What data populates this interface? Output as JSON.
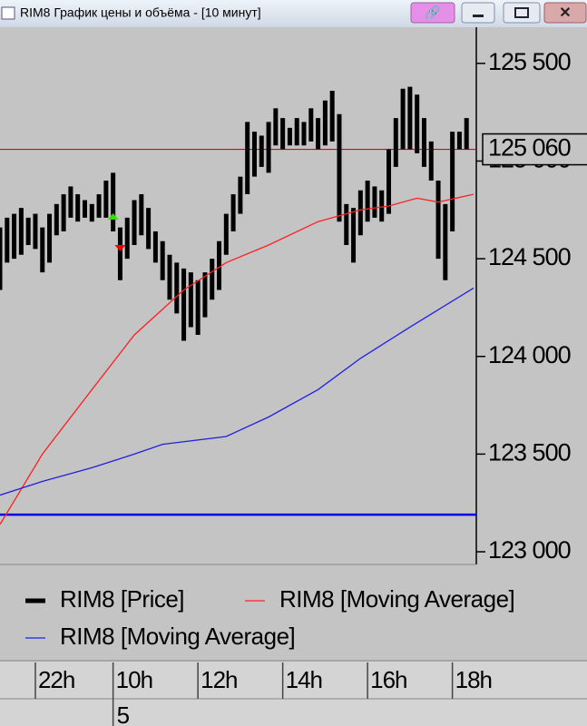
{
  "window": {
    "title": "RIM8 График цены и объёма - [10 минут]"
  },
  "chart_data": {
    "type": "rangebar",
    "xlim": [
      0,
      67
    ],
    "xticks": [
      {
        "value": 5,
        "label": "22h"
      },
      {
        "value": 16,
        "label": "10h"
      },
      {
        "value": 28,
        "label": "12h"
      },
      {
        "value": 40,
        "label": "14h"
      },
      {
        "value": 52,
        "label": "16h"
      },
      {
        "value": 64,
        "label": "18h"
      }
    ],
    "date_ticks": [
      {
        "value": 16,
        "label": "5"
      }
    ],
    "ylim": [
      122935,
      125685
    ],
    "yticks": [
      {
        "value": 123000,
        "label": "123 000"
      },
      {
        "value": 123500,
        "label": "123 500"
      },
      {
        "value": 124000,
        "label": "124 000"
      },
      {
        "value": 124500,
        "label": "124 500"
      },
      {
        "value": 125000,
        "label": "125 000"
      },
      {
        "value": 125500,
        "label": "125 500"
      }
    ],
    "series": [
      {
        "name": "RIM8 [Price]",
        "color": "#000000",
        "high": [
          124660,
          124710,
          124730,
          124760,
          124710,
          124730,
          124660,
          124730,
          124780,
          124830,
          124870,
          124830,
          124800,
          124780,
          124830,
          124900,
          124940,
          124660,
          124710,
          124800,
          124830,
          124760,
          124640,
          124590,
          124520,
          124480,
          124450,
          124430,
          124390,
          124430,
          124500,
          124590,
          124730,
          124830,
          124920,
          125200,
          125150,
          125130,
          125200,
          125270,
          125220,
          125170,
          125220,
          125200,
          125270,
          125220,
          125310,
          125360,
          125240,
          124780,
          124760,
          124850,
          124900,
          124870,
          124850,
          125060,
          125220,
          125370,
          125380,
          125340,
          125220,
          125100,
          124900,
          124780,
          125150,
          125150,
          125220
        ],
        "low": [
          124340,
          124480,
          124500,
          124520,
          124570,
          124550,
          124430,
          124480,
          124620,
          124640,
          124710,
          124690,
          124710,
          124690,
          124710,
          124710,
          124640,
          124390,
          124500,
          124570,
          124620,
          124550,
          124480,
          124390,
          124290,
          124220,
          124080,
          124150,
          124110,
          124200,
          124290,
          124340,
          124520,
          124640,
          124730,
          124830,
          124920,
          124970,
          124940,
          125080,
          125060,
          125080,
          125080,
          125080,
          125100,
          125060,
          125080,
          125100,
          124690,
          124570,
          124480,
          124620,
          124690,
          124710,
          124690,
          124730,
          124970,
          125060,
          125060,
          125040,
          124970,
          124900,
          124500,
          124390,
          124640,
          125060,
          125060
        ]
      },
      {
        "name": "RIM8 [Moving Average]",
        "color": "#ff2020",
        "x": [
          0,
          6,
          13,
          19,
          26,
          32,
          38,
          45,
          51,
          55,
          59,
          62,
          67
        ],
        "values": [
          123140,
          123500,
          123830,
          124110,
          124340,
          124480,
          124570,
          124690,
          124750,
          124770,
          124810,
          124790,
          124830
        ]
      },
      {
        "name": "RIM8 [Moving Average]",
        "color": "#2020e0",
        "x": [
          0,
          6,
          13,
          19,
          23,
          32,
          38,
          45,
          51,
          58,
          67
        ],
        "values": [
          123290,
          123360,
          123430,
          123500,
          123550,
          123590,
          123690,
          123830,
          123990,
          124150,
          124350
        ]
      }
    ],
    "reference_lines": [
      {
        "value": 125060,
        "label": "125 060",
        "color": "#e00000"
      },
      {
        "value": 123190,
        "color": "#0000e0"
      }
    ],
    "signals": [
      {
        "x": 16,
        "value": 124700,
        "color": "#33dd00",
        "shape": "up"
      },
      {
        "x": 17,
        "value": 124570,
        "color": "#ee0000",
        "shape": "down"
      }
    ]
  }
}
